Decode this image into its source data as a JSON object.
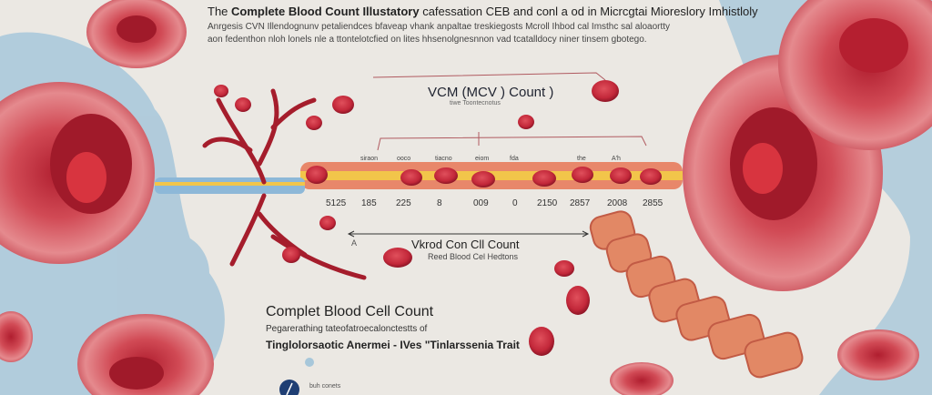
{
  "header": {
    "line1_prefix": "The ",
    "line1_bold": "Complete Blood Count Illustatory",
    "line1_rest": " cafessation CEB  and conl a od  in  Micrcgtai Mioreslory Imhistloly",
    "line2": "Anrgesis CVN  Illendognunv petaliendces  bfaveap vhank anpaltae treskiegosts  Mcroll Ihbod  cal Imsthc sal aloaortty",
    "line3": "aon fedenthon nloh lonels nle  a ttontelotcfied on  lites hhsenolgnesnnon vad tcatalldocy niner tinsem gbotego."
  },
  "mcv": {
    "title": "VCM (MCV   ) Count )",
    "subtitle": "tiwe Toontecnotus"
  },
  "vessel": {
    "top_labels": [
      "siraon",
      "ooco",
      "tiacno",
      "eiom",
      "fda",
      "the",
      "A'h"
    ],
    "numbers": [
      "5125",
      "185",
      "225",
      "8",
      "009",
      "0",
      "2150",
      "2857",
      "2008",
      "2855"
    ]
  },
  "count": {
    "marker": "A",
    "title": "Vkrod Con Cll Count",
    "subtitle": "Reed Blood Cel Hedtons"
  },
  "cbc": {
    "title": "Complet Blood Cell Count",
    "subtitle": "Pegarerathing tateofatroecalonctestts  of",
    "trait": "Tinglolorsaotic Anermei - IVes \"Tinlarssenia Trait"
  },
  "footer": {
    "note": "buh conets",
    "icon": "pen-icon"
  },
  "colors": {
    "background": "#ebe8e3",
    "cell_red": "#c3283a",
    "blue_wash": "#a7c7da",
    "vessel_orange": "#e8876a",
    "vessel_yellow": "#f2c54a"
  }
}
